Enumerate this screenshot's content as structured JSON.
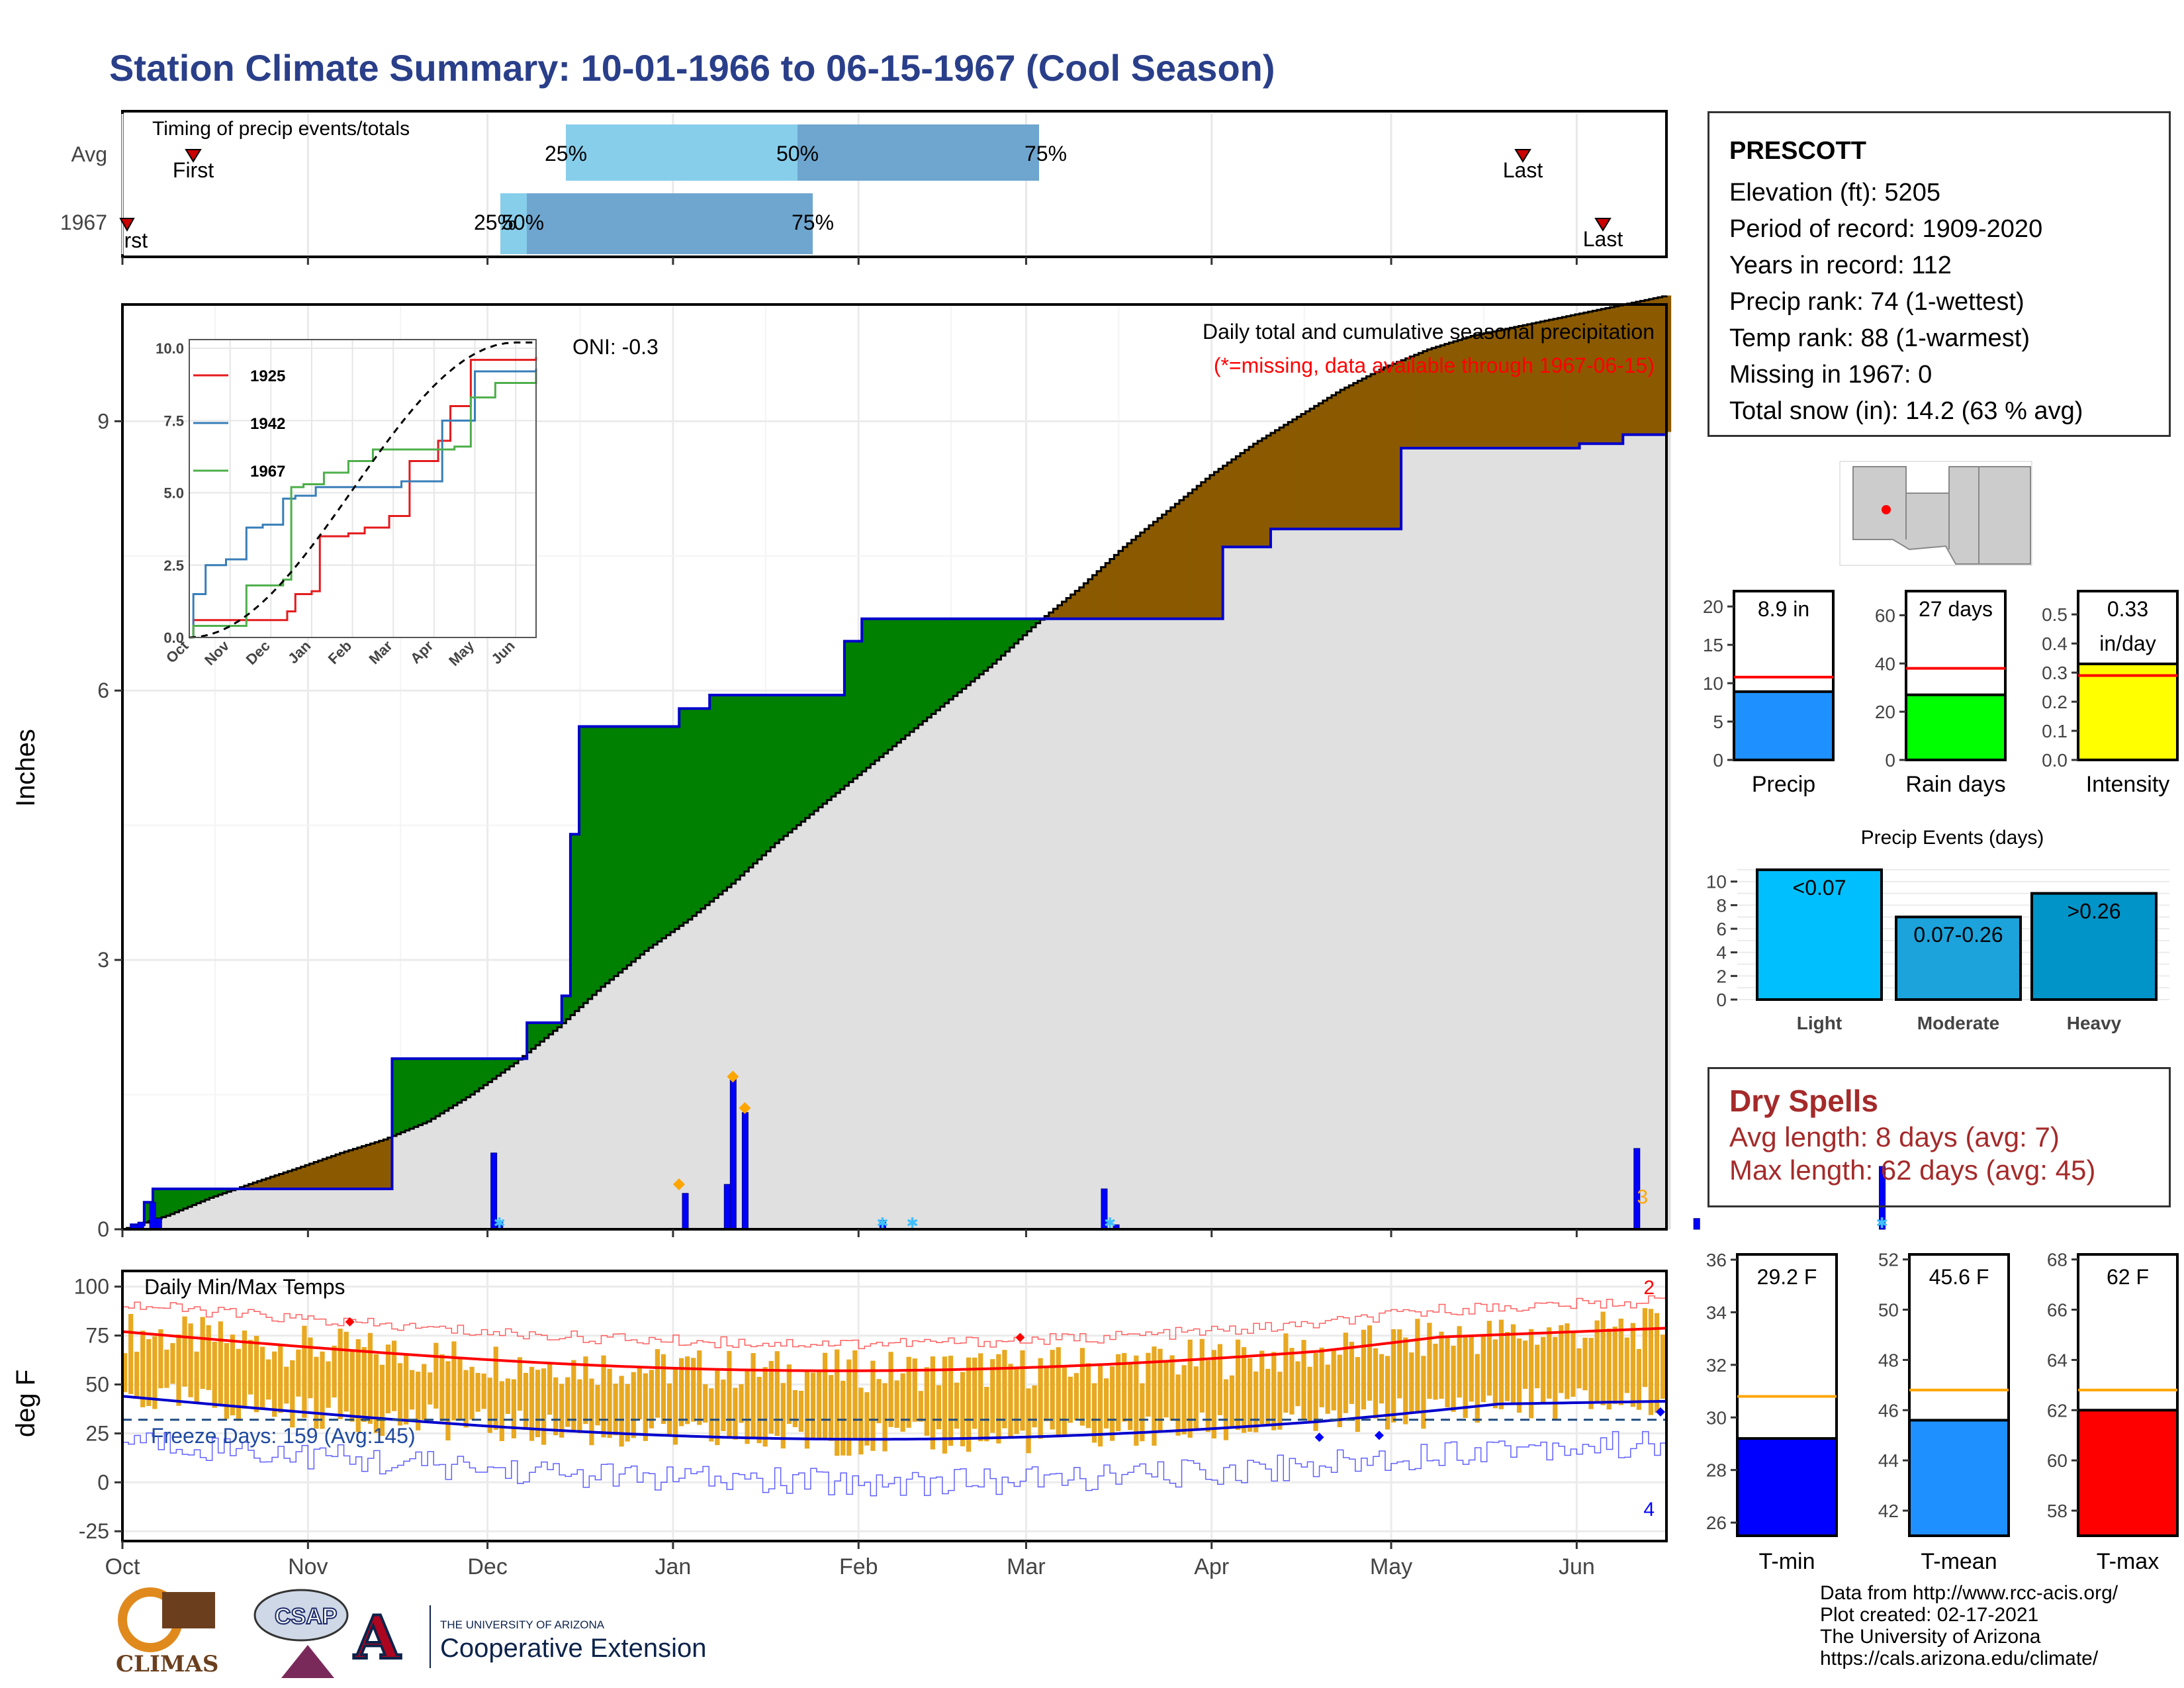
{
  "title": "Station Climate Summary: 10-01-1966 to 06-15-1967 (Cool Season)",
  "timing": {
    "label": "Timing of precip events/totals",
    "rows": [
      {
        "name": "Avg",
        "first": "First",
        "last": "Last",
        "p25": "25%",
        "p50": "50%",
        "p75": "75%"
      },
      {
        "name": "1967",
        "first": "First",
        "last": "Last",
        "p25": "25%",
        "p50": "50%",
        "p75": "75%"
      }
    ]
  },
  "chart_data": [
    {
      "type": "area",
      "name": "precip",
      "title": "Daily total and cumulative seasonal precipitation",
      "subtitle": "(*=missing, data available through 1967-06-15)",
      "ylabel": "Inches",
      "ylim": [
        0,
        10.3
      ],
      "yticks": [
        "0",
        "3",
        "6",
        "9"
      ],
      "oni_label": "ONI: -0.3",
      "missing_count": "3",
      "avg_cumulative": [
        [
          0,
          0
        ],
        [
          10,
          0.15
        ],
        [
          20,
          0.35
        ],
        [
          30,
          0.52
        ],
        [
          40,
          0.68
        ],
        [
          50,
          0.85
        ],
        [
          60,
          1.0
        ],
        [
          70,
          1.2
        ],
        [
          80,
          1.5
        ],
        [
          90,
          1.85
        ],
        [
          100,
          2.25
        ],
        [
          110,
          2.7
        ],
        [
          120,
          3.1
        ],
        [
          130,
          3.45
        ],
        [
          140,
          3.85
        ],
        [
          150,
          4.3
        ],
        [
          160,
          4.7
        ],
        [
          170,
          5.1
        ],
        [
          180,
          5.5
        ],
        [
          190,
          5.9
        ],
        [
          200,
          6.3
        ],
        [
          210,
          6.75
        ],
        [
          220,
          7.15
        ],
        [
          230,
          7.6
        ],
        [
          240,
          8.0
        ],
        [
          250,
          8.4
        ],
        [
          260,
          8.75
        ],
        [
          270,
          9.05
        ],
        [
          280,
          9.35
        ],
        [
          290,
          9.6
        ],
        [
          300,
          9.8
        ],
        [
          310,
          9.95
        ],
        [
          320,
          10.05
        ],
        [
          330,
          10.15
        ],
        [
          340,
          10.25
        ],
        [
          350,
          10.35
        ],
        [
          355,
          10.4
        ]
      ],
      "obs_cumulative": [
        [
          0,
          0
        ],
        [
          2,
          0.05
        ],
        [
          5,
          0.3
        ],
        [
          7,
          0.45
        ],
        [
          55,
          0.45
        ],
        [
          62,
          1.9
        ],
        [
          92,
          1.9
        ],
        [
          93,
          2.3
        ],
        [
          101,
          2.6
        ],
        [
          103,
          4.4
        ],
        [
          105,
          5.6
        ],
        [
          127,
          5.6
        ],
        [
          128,
          5.8
        ],
        [
          135,
          5.95
        ],
        [
          165,
          5.95
        ],
        [
          166,
          6.55
        ],
        [
          170,
          6.8
        ],
        [
          252,
          6.8
        ],
        [
          253,
          7.6
        ],
        [
          263,
          7.6
        ],
        [
          264,
          7.8
        ],
        [
          293,
          7.8
        ],
        [
          294,
          8.7
        ],
        [
          335,
          8.75
        ],
        [
          345,
          8.85
        ],
        [
          355,
          8.88
        ]
      ],
      "daily": [
        [
          2,
          0.05
        ],
        [
          3,
          0.08
        ],
        [
          5,
          0.3
        ],
        [
          6,
          0.12
        ],
        [
          62,
          0.85
        ],
        [
          63,
          0.08
        ],
        [
          94,
          0.4
        ],
        [
          101,
          0.5
        ],
        [
          102,
          1.7
        ],
        [
          104,
          1.3
        ],
        [
          127,
          0.1
        ],
        [
          164,
          0.45
        ],
        [
          166,
          0.05
        ],
        [
          253,
          0.9
        ],
        [
          263,
          0.12
        ],
        [
          294,
          0.7
        ]
      ],
      "heavy_markers": [
        [
          93,
          0.5
        ],
        [
          102,
          1.7
        ],
        [
          104,
          1.35
        ]
      ],
      "x_axis": [
        "Oct",
        "Nov",
        "Dec",
        "Jan",
        "Feb",
        "Mar",
        "Apr",
        "May",
        "Jun"
      ]
    },
    {
      "type": "line",
      "name": "inset",
      "series": [
        {
          "name": "1925",
          "color": "#e41a1c"
        },
        {
          "name": "1942",
          "color": "#377eb8"
        },
        {
          "name": "1967",
          "color": "#4daf4a"
        }
      ],
      "yticks": [
        "0.0",
        "2.5",
        "5.0",
        "7.5",
        "10.0"
      ],
      "xticks": [
        "Oct",
        "Nov",
        "Dec",
        "Jan",
        "Feb",
        "Mar",
        "Apr",
        "May",
        "Jun"
      ]
    },
    {
      "type": "bar",
      "name": "temps",
      "title": "Daily Min/Max Temps",
      "ylabel": "deg F",
      "yticks": [
        "100",
        "75",
        "50",
        "25",
        "0",
        "-25"
      ],
      "freeze_label": "Freeze Days: 159 (Avg:145)",
      "count_top": "2",
      "count_bottom": "4",
      "x_axis": [
        "Oct",
        "Nov",
        "Dec",
        "Jan",
        "Feb",
        "Mar",
        "Apr",
        "May",
        "Jun"
      ]
    }
  ],
  "station": {
    "name": "PRESCOTT",
    "elevation": "Elevation (ft): 5205",
    "period": "Period of record: 1909-2020",
    "years": "Years in record: 112",
    "precip_rank": "Precip rank: 74 (1-wettest)",
    "temp_rank": "Temp rank: 88 (1-warmest)",
    "missing": "Missing in 1967: 0",
    "snow": "Total snow (in): 14.2 (63 % avg)"
  },
  "summary_bars": [
    {
      "label": "Precip",
      "value_text": "8.9 in",
      "value": 8.9,
      "avg": 10.8,
      "ymax": 22,
      "ticks": [
        "0",
        "5",
        "10",
        "15",
        "20"
      ],
      "color": "#1e90ff"
    },
    {
      "label": "Rain days",
      "value_text": "27 days",
      "value": 27,
      "avg": 38,
      "ymax": 70,
      "ticks": [
        "0",
        "20",
        "40",
        "60"
      ],
      "color": "#00ff00"
    },
    {
      "label": "Intensity",
      "value_text": "0.33",
      "value_text2": "in/day",
      "value": 0.33,
      "avg": 0.29,
      "ymax": 0.58,
      "ticks": [
        "0.0",
        "0.1",
        "0.2",
        "0.3",
        "0.4",
        "0.5"
      ],
      "color": "#ffff00"
    }
  ],
  "events": {
    "title": "Precip Events (days)",
    "ticks": [
      "0",
      "2",
      "4",
      "6",
      "8",
      "10"
    ],
    "bars": [
      {
        "label": "Light",
        "range": "<0.07",
        "value": 11,
        "color": "#00bfff"
      },
      {
        "label": "Moderate",
        "range": "0.07-0.26",
        "value": 7,
        "color": "#1ca3db"
      },
      {
        "label": "Heavy",
        "range": ">0.26",
        "value": 9,
        "color": "#0094c8"
      }
    ]
  },
  "dry_spells": {
    "title": "Dry Spells",
    "avg": "Avg length: 8 days (avg: 7)",
    "max": "Max length: 62 days (avg: 45)"
  },
  "temp_bars": [
    {
      "label": "T-min",
      "value_text": "29.2 F",
      "value": 29.2,
      "avg": 30.8,
      "ymin": 25.5,
      "ymax": 36.2,
      "ticks": [
        "26",
        "28",
        "30",
        "32",
        "34",
        "36"
      ],
      "color": "#0000ff"
    },
    {
      "label": "T-mean",
      "value_text": "45.6 F",
      "value": 45.6,
      "avg": 46.8,
      "ymin": 41,
      "ymax": 52.2,
      "ticks": [
        "42",
        "44",
        "46",
        "48",
        "50",
        "52"
      ],
      "color": "#1e90ff"
    },
    {
      "label": "T-max",
      "value_text": "62 F",
      "value": 62,
      "avg": 62.8,
      "ymin": 57,
      "ymax": 68.2,
      "ticks": [
        "58",
        "60",
        "62",
        "64",
        "66",
        "68"
      ],
      "color": "#ff0000"
    }
  ],
  "credits": [
    "Data from http://www.rcc-acis.org/",
    "Plot created: 02-17-2021",
    "The University of Arizona",
    "https://cals.arizona.edu/climate/"
  ],
  "logos": {
    "climas": "CLIMAS",
    "csap": "CSAP",
    "ua_small": "THE UNIVERSITY OF ARIZONA",
    "ua_big": "Cooperative Extension"
  }
}
